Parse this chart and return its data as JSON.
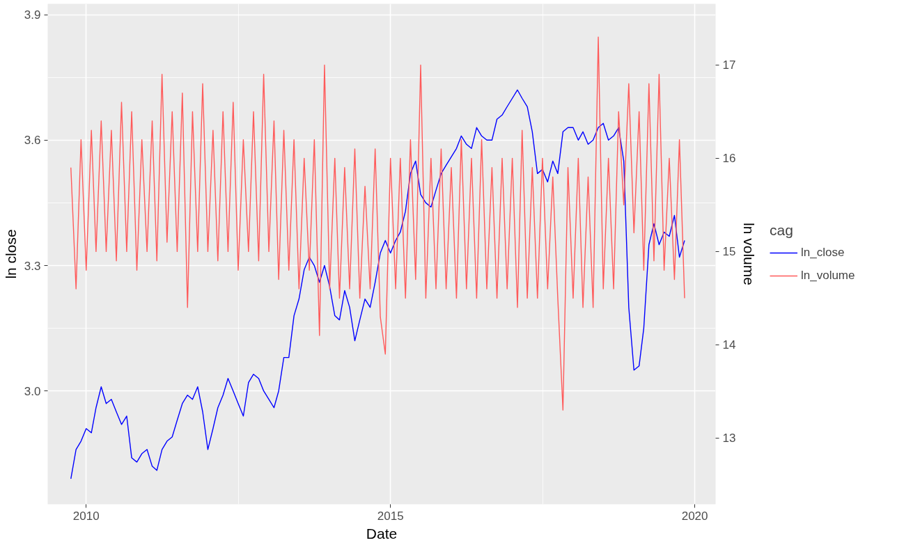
{
  "chart_data": {
    "type": "line",
    "xlabel": "Date",
    "ylabel": "ln close",
    "y2label": "ln volume",
    "legend_title": "cag",
    "legend": "right",
    "grid": true,
    "line_style": "solid",
    "xlim": [
      "2009-05-15",
      "2020-05-05"
    ],
    "xticks": [
      {
        "value": "2010-01-01",
        "label": "2010"
      },
      {
        "value": "2015-01-01",
        "label": "2015"
      },
      {
        "value": "2020-01-01",
        "label": "2020"
      }
    ],
    "ylim": [
      2.729,
      3.926
    ],
    "yticks": [
      {
        "value": 3.0,
        "label": "3.0"
      },
      {
        "value": 3.3,
        "label": "3.3"
      },
      {
        "value": 3.6,
        "label": "3.6"
      },
      {
        "value": 3.9,
        "label": "3.9"
      }
    ],
    "y2lim": [
      12.29,
      17.656
    ],
    "y2ticks": [
      13,
      14,
      15,
      16,
      17
    ],
    "series": [
      {
        "name": "ln_close",
        "color": "#0000ff",
        "x": [
          "2009-10",
          "2009-11",
          "2009-12",
          "2010-01",
          "2010-02",
          "2010-03",
          "2010-04",
          "2010-05",
          "2010-06",
          "2010-07",
          "2010-08",
          "2010-09",
          "2010-10",
          "2010-11",
          "2010-12",
          "2011-01",
          "2011-02",
          "2011-03",
          "2011-04",
          "2011-05",
          "2011-06",
          "2011-07",
          "2011-08",
          "2011-09",
          "2011-10",
          "2011-11",
          "2011-12",
          "2012-01",
          "2012-02",
          "2012-03",
          "2012-04",
          "2012-05",
          "2012-06",
          "2012-07",
          "2012-08",
          "2012-09",
          "2012-10",
          "2012-11",
          "2012-12",
          "2013-01",
          "2013-02",
          "2013-03",
          "2013-04",
          "2013-05",
          "2013-06",
          "2013-07",
          "2013-08",
          "2013-09",
          "2013-10",
          "2013-11",
          "2013-12",
          "2014-01",
          "2014-02",
          "2014-03",
          "2014-04",
          "2014-05",
          "2014-06",
          "2014-07",
          "2014-08",
          "2014-09",
          "2014-10",
          "2014-11",
          "2014-12",
          "2015-01",
          "2015-02",
          "2015-03",
          "2015-04",
          "2015-05",
          "2015-06",
          "2015-07",
          "2015-08",
          "2015-09",
          "2015-10",
          "2015-11",
          "2015-12",
          "2016-01",
          "2016-02",
          "2016-03",
          "2016-04",
          "2016-05",
          "2016-06",
          "2016-07",
          "2016-08",
          "2016-09",
          "2016-10",
          "2016-11",
          "2016-12",
          "2017-01",
          "2017-02",
          "2017-03",
          "2017-04",
          "2017-05",
          "2017-06",
          "2017-07",
          "2017-08",
          "2017-09",
          "2017-10",
          "2017-11",
          "2017-12",
          "2018-01",
          "2018-02",
          "2018-03",
          "2018-04",
          "2018-05",
          "2018-06",
          "2018-07",
          "2018-08",
          "2018-09",
          "2018-10",
          "2018-11",
          "2018-12",
          "2019-01",
          "2019-02",
          "2019-03",
          "2019-04",
          "2019-05",
          "2019-06",
          "2019-07",
          "2019-08",
          "2019-09",
          "2019-10",
          "2019-11"
        ],
        "values": [
          2.79,
          2.86,
          2.88,
          2.91,
          2.9,
          2.96,
          3.01,
          2.97,
          2.98,
          2.95,
          2.92,
          2.94,
          2.84,
          2.83,
          2.85,
          2.86,
          2.82,
          2.81,
          2.86,
          2.88,
          2.89,
          2.93,
          2.97,
          2.99,
          2.98,
          3.01,
          2.95,
          2.86,
          2.91,
          2.96,
          2.99,
          3.03,
          3.0,
          2.97,
          2.94,
          3.02,
          3.04,
          3.03,
          3.0,
          2.98,
          2.96,
          3.0,
          3.08,
          3.08,
          3.18,
          3.22,
          3.29,
          3.32,
          3.3,
          3.26,
          3.3,
          3.25,
          3.18,
          3.17,
          3.24,
          3.2,
          3.12,
          3.17,
          3.22,
          3.2,
          3.26,
          3.33,
          3.36,
          3.33,
          3.36,
          3.38,
          3.43,
          3.52,
          3.55,
          3.47,
          3.45,
          3.44,
          3.48,
          3.52,
          3.54,
          3.56,
          3.58,
          3.61,
          3.59,
          3.58,
          3.63,
          3.61,
          3.6,
          3.6,
          3.65,
          3.66,
          3.68,
          3.7,
          3.72,
          3.7,
          3.68,
          3.62,
          3.52,
          3.53,
          3.5,
          3.55,
          3.52,
          3.62,
          3.63,
          3.63,
          3.6,
          3.62,
          3.59,
          3.6,
          3.63,
          3.64,
          3.6,
          3.61,
          3.63,
          3.55,
          3.2,
          3.05,
          3.06,
          3.15,
          3.35,
          3.4,
          3.35,
          3.38,
          3.37,
          3.42,
          3.32,
          3.36
        ]
      },
      {
        "name": "ln_volume",
        "color": "#ff5a5a",
        "axis": "y2",
        "x": [
          "2009-10",
          "2009-11",
          "2009-12",
          "2010-01",
          "2010-02",
          "2010-03",
          "2010-04",
          "2010-05",
          "2010-06",
          "2010-07",
          "2010-08",
          "2010-09",
          "2010-10",
          "2010-11",
          "2010-12",
          "2011-01",
          "2011-02",
          "2011-03",
          "2011-04",
          "2011-05",
          "2011-06",
          "2011-07",
          "2011-08",
          "2011-09",
          "2011-10",
          "2011-11",
          "2011-12",
          "2012-01",
          "2012-02",
          "2012-03",
          "2012-04",
          "2012-05",
          "2012-06",
          "2012-07",
          "2012-08",
          "2012-09",
          "2012-10",
          "2012-11",
          "2012-12",
          "2013-01",
          "2013-02",
          "2013-03",
          "2013-04",
          "2013-05",
          "2013-06",
          "2013-07",
          "2013-08",
          "2013-09",
          "2013-10",
          "2013-11",
          "2013-12",
          "2014-01",
          "2014-02",
          "2014-03",
          "2014-04",
          "2014-05",
          "2014-06",
          "2014-07",
          "2014-08",
          "2014-09",
          "2014-10",
          "2014-11",
          "2014-12",
          "2015-01",
          "2015-02",
          "2015-03",
          "2015-04",
          "2015-05",
          "2015-06",
          "2015-07",
          "2015-08",
          "2015-09",
          "2015-10",
          "2015-11",
          "2015-12",
          "2016-01",
          "2016-02",
          "2016-03",
          "2016-04",
          "2016-05",
          "2016-06",
          "2016-07",
          "2016-08",
          "2016-09",
          "2016-10",
          "2016-11",
          "2016-12",
          "2017-01",
          "2017-02",
          "2017-03",
          "2017-04",
          "2017-05",
          "2017-06",
          "2017-07",
          "2017-08",
          "2017-09",
          "2017-10",
          "2017-11",
          "2017-12",
          "2018-01",
          "2018-02",
          "2018-03",
          "2018-04",
          "2018-05",
          "2018-06",
          "2018-07",
          "2018-08",
          "2018-09",
          "2018-10",
          "2018-11",
          "2018-12",
          "2019-01",
          "2019-02",
          "2019-03",
          "2019-04",
          "2019-05",
          "2019-06",
          "2019-07",
          "2019-08",
          "2019-09",
          "2019-10",
          "2019-11"
        ],
        "values": [
          15.9,
          14.6,
          16.2,
          14.8,
          16.3,
          15.0,
          16.4,
          15.0,
          16.3,
          14.9,
          16.6,
          15.0,
          16.5,
          14.8,
          16.2,
          15.0,
          16.4,
          14.9,
          16.9,
          15.1,
          16.5,
          15.0,
          16.7,
          14.4,
          16.5,
          15.0,
          16.8,
          15.0,
          16.3,
          14.9,
          16.5,
          15.0,
          16.6,
          14.8,
          16.2,
          15.0,
          16.5,
          14.9,
          16.9,
          15.0,
          16.4,
          14.7,
          16.3,
          14.8,
          16.2,
          14.6,
          16.0,
          14.8,
          16.2,
          14.1,
          17.0,
          14.6,
          16.0,
          14.5,
          15.9,
          14.6,
          16.1,
          14.5,
          15.7,
          14.6,
          16.1,
          14.3,
          13.9,
          16.0,
          14.6,
          16.0,
          14.5,
          16.2,
          14.7,
          17.0,
          14.5,
          16.0,
          14.6,
          16.1,
          14.6,
          15.9,
          14.5,
          16.2,
          14.6,
          16.0,
          14.5,
          16.2,
          14.6,
          15.9,
          14.5,
          16.0,
          14.6,
          16.0,
          14.4,
          16.3,
          14.5,
          15.9,
          14.5,
          16.0,
          14.6,
          15.8,
          14.5,
          13.3,
          15.9,
          14.5,
          16.0,
          14.4,
          15.8,
          14.4,
          17.3,
          14.6,
          16.0,
          14.6,
          16.5,
          15.5,
          16.8,
          15.2,
          16.5,
          14.8,
          16.8,
          14.9,
          16.9,
          14.8,
          16.0,
          14.7,
          16.2,
          14.5
        ]
      }
    ]
  }
}
